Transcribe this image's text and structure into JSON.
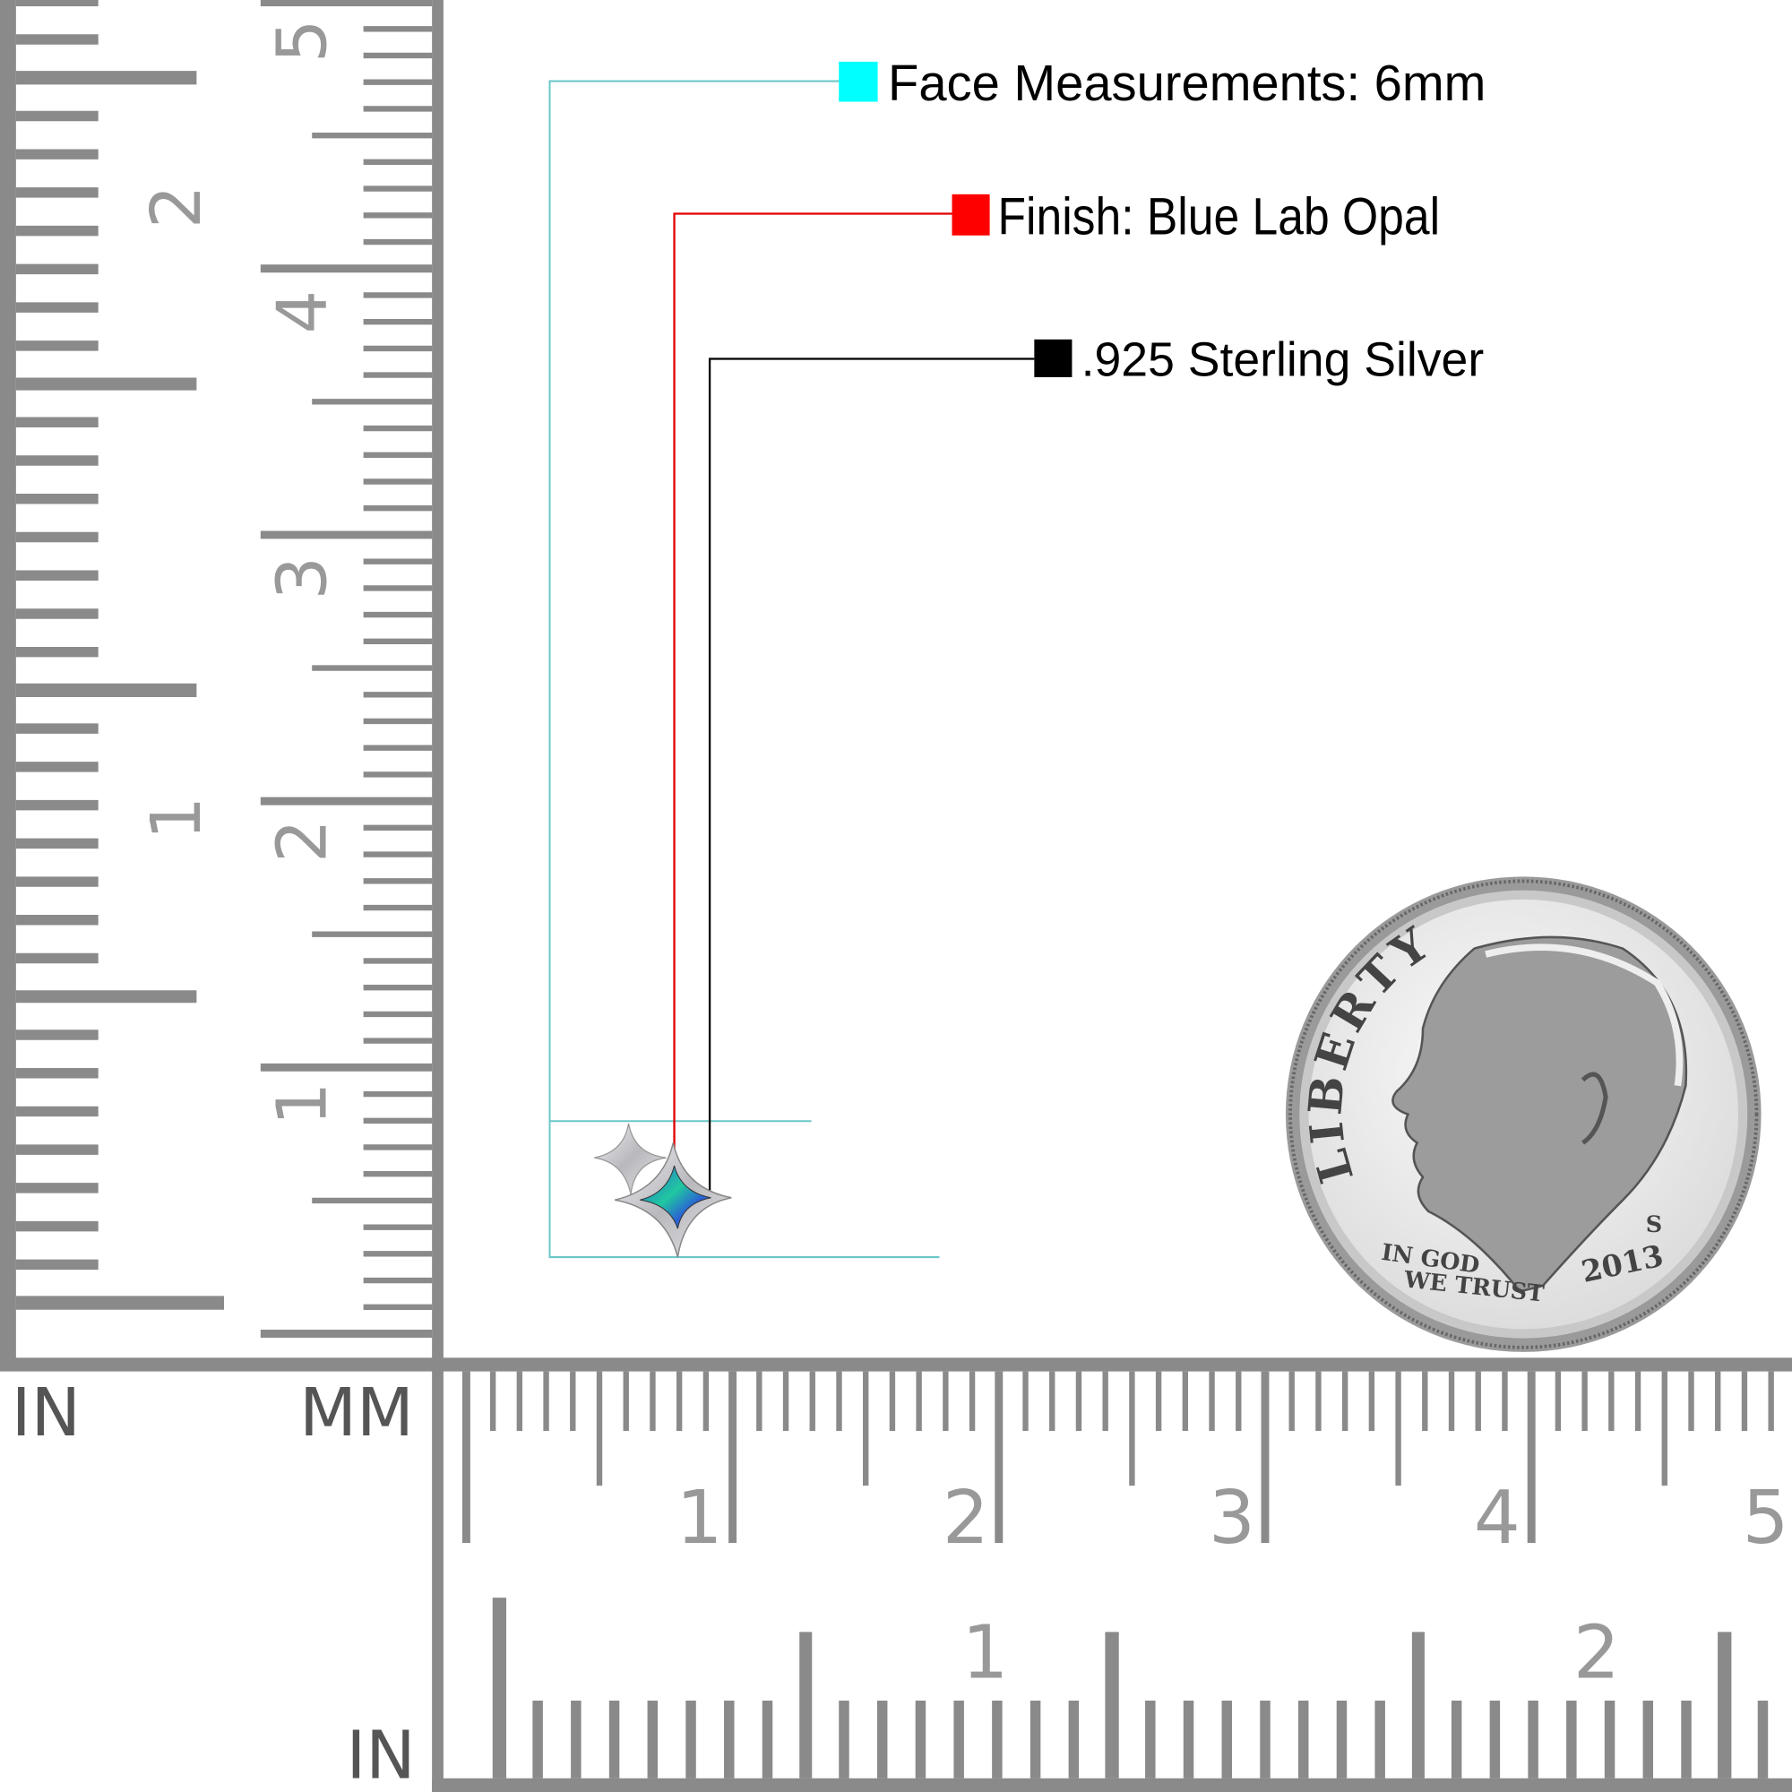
{
  "callouts": [
    {
      "label": "Face Measurements: 6mm",
      "color": "#00ffff"
    },
    {
      "label": "Finish: Blue Lab Opal",
      "color": "#ff0000"
    },
    {
      "label": ".925 Sterling Silver",
      "color": "#000000"
    }
  ],
  "rulers": {
    "unit_in_left": "IN",
    "unit_mm": "MM",
    "unit_in_bottom": "IN",
    "left_inch_labels": [
      "1",
      "2"
    ],
    "left_mm_labels": [
      "1",
      "2",
      "3",
      "4",
      "5"
    ],
    "bottom_mm_labels": [
      "1",
      "2",
      "3",
      "4",
      "5"
    ],
    "bottom_inch_labels": [
      "1",
      "2"
    ],
    "ruler_color": "#8a8a8a"
  },
  "coin": {
    "top_text": "LIBERTY",
    "motto_line1": "IN GOD",
    "motto_line2": "WE TRUST",
    "year": "2013",
    "mint_mark": "S"
  },
  "product": {
    "opal_colors": [
      "#2a5fd6",
      "#20c8a0"
    ],
    "metal_color": "#c8c8cc"
  }
}
